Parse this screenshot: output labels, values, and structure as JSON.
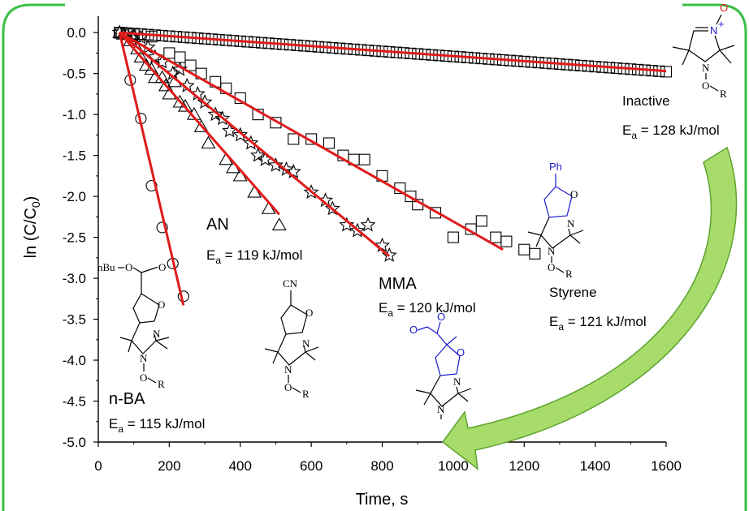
{
  "colors": {
    "frame": "#3bbf45",
    "fit_line": "#e01b1b",
    "marker": "#000000",
    "arrow_dark": "#5ea331",
    "arrow_light": "#a8dc6a",
    "blue_structure": "#1a1acc",
    "nitrone_oxygen": "#e01b1b"
  },
  "chart_data": {
    "type": "scatter",
    "title": "",
    "xlabel": "Time, s",
    "ylabel_main": "ln (C/C",
    "ylabel_sub": "0",
    "ylabel_end": ")",
    "xlim": [
      0,
      1600
    ],
    "ylim": [
      -5.0,
      0.2
    ],
    "x_ticks": [
      "0",
      "200",
      "400",
      "600",
      "800",
      "1000",
      "1200",
      "1400",
      "1600"
    ],
    "y_ticks": [
      "0.0",
      "-0.5",
      "-1.0",
      "-1.5",
      "-2.0",
      "-2.5",
      "-3.0",
      "-3.5",
      "-4.0",
      "-4.5",
      "-5.0"
    ],
    "grid": false,
    "legend": "none",
    "series": [
      {
        "name": "n-BA",
        "marker": "circle",
        "ea_prefix": "E",
        "ea_sub": "a",
        "ea_value": " = 115 kJ/mol",
        "points": [
          [
            60,
            0.0
          ],
          [
            90,
            -0.58
          ],
          [
            120,
            -1.05
          ],
          [
            150,
            -1.87
          ],
          [
            180,
            -2.38
          ],
          [
            210,
            -2.82
          ],
          [
            240,
            -3.22
          ]
        ],
        "fit": [
          [
            60,
            0.0
          ],
          [
            240,
            -3.33
          ]
        ]
      },
      {
        "name": "AN",
        "marker": "triangle",
        "ea_prefix": "E",
        "ea_sub": "a",
        "ea_value": " = 119 kJ/mol",
        "points": [
          [
            60,
            0.0
          ],
          [
            70,
            -0.02
          ],
          [
            90,
            -0.1
          ],
          [
            100,
            -0.05
          ],
          [
            110,
            -0.2
          ],
          [
            120,
            -0.3
          ],
          [
            135,
            -0.4
          ],
          [
            150,
            -0.45
          ],
          [
            160,
            -0.55
          ],
          [
            180,
            -0.55
          ],
          [
            190,
            -0.65
          ],
          [
            200,
            -0.75
          ],
          [
            215,
            -0.6
          ],
          [
            230,
            -0.85
          ],
          [
            245,
            -0.9
          ],
          [
            270,
            -1.0
          ],
          [
            290,
            -1.15
          ],
          [
            310,
            -1.35
          ],
          [
            360,
            -1.55
          ],
          [
            380,
            -1.65
          ],
          [
            400,
            -1.75
          ],
          [
            440,
            -1.95
          ],
          [
            480,
            -2.15
          ],
          [
            510,
            -2.35
          ]
        ],
        "fit": [
          [
            60,
            0.0
          ],
          [
            510,
            -2.22
          ]
        ]
      },
      {
        "name": "MMA",
        "marker": "star",
        "ea_prefix": "E",
        "ea_sub": "a",
        "ea_value": " = 120 kJ/mol",
        "points": [
          [
            60,
            0.0
          ],
          [
            80,
            -0.02
          ],
          [
            100,
            -0.04
          ],
          [
            120,
            -0.06
          ],
          [
            140,
            -0.18
          ],
          [
            160,
            -0.3
          ],
          [
            180,
            -0.36
          ],
          [
            210,
            -0.5
          ],
          [
            230,
            -0.45
          ],
          [
            250,
            -0.65
          ],
          [
            280,
            -0.75
          ],
          [
            300,
            -0.85
          ],
          [
            330,
            -1.0
          ],
          [
            350,
            -1.05
          ],
          [
            370,
            -1.2
          ],
          [
            400,
            -1.25
          ],
          [
            430,
            -1.35
          ],
          [
            450,
            -1.5
          ],
          [
            470,
            -1.55
          ],
          [
            500,
            -1.62
          ],
          [
            530,
            -1.67
          ],
          [
            550,
            -1.7
          ],
          [
            600,
            -1.95
          ],
          [
            640,
            -2.05
          ],
          [
            660,
            -2.15
          ],
          [
            700,
            -2.35
          ],
          [
            730,
            -2.42
          ],
          [
            760,
            -2.35
          ],
          [
            800,
            -2.6
          ],
          [
            820,
            -2.72
          ]
        ],
        "fit": [
          [
            60,
            0.0
          ],
          [
            820,
            -2.73
          ]
        ]
      },
      {
        "name": "Styrene",
        "marker": "square",
        "ea_prefix": "E",
        "ea_sub": "a",
        "ea_value": " = 121 kJ/mol",
        "points": [
          [
            60,
            0.0
          ],
          [
            100,
            -0.02
          ],
          [
            150,
            -0.05
          ],
          [
            200,
            -0.25
          ],
          [
            230,
            -0.3
          ],
          [
            260,
            -0.4
          ],
          [
            290,
            -0.5
          ],
          [
            330,
            -0.6
          ],
          [
            360,
            -0.68
          ],
          [
            400,
            -0.8
          ],
          [
            450,
            -1.0
          ],
          [
            500,
            -1.1
          ],
          [
            550,
            -1.3
          ],
          [
            600,
            -1.3
          ],
          [
            650,
            -1.35
          ],
          [
            690,
            -1.5
          ],
          [
            720,
            -1.55
          ],
          [
            750,
            -1.55
          ],
          [
            800,
            -1.75
          ],
          [
            850,
            -1.9
          ],
          [
            880,
            -2.0
          ],
          [
            900,
            -2.1
          ],
          [
            950,
            -2.2
          ],
          [
            1000,
            -2.5
          ],
          [
            1050,
            -2.4
          ],
          [
            1080,
            -2.3
          ],
          [
            1120,
            -2.5
          ],
          [
            1150,
            -2.55
          ],
          [
            1200,
            -2.65
          ],
          [
            1230,
            -2.7
          ]
        ],
        "fit": [
          [
            60,
            0.0
          ],
          [
            1140,
            -2.65
          ]
        ]
      },
      {
        "name": "Inactive",
        "marker": "square",
        "ea_prefix": "E",
        "ea_sub": "a",
        "ea_value": " = 128 kJ/mol",
        "x_start": 60,
        "x_end": 1600,
        "x_step": 20,
        "slope": -0.00031,
        "fit": [
          [
            60,
            0.0
          ],
          [
            1600,
            -0.47
          ]
        ]
      }
    ]
  },
  "structures": {
    "nba_text": "nBu",
    "cn_text": "CN",
    "ph_text": "Ph",
    "atom_o": "O",
    "atom_n": "N",
    "atom_r": "R",
    "nitrone_plus": "+"
  }
}
